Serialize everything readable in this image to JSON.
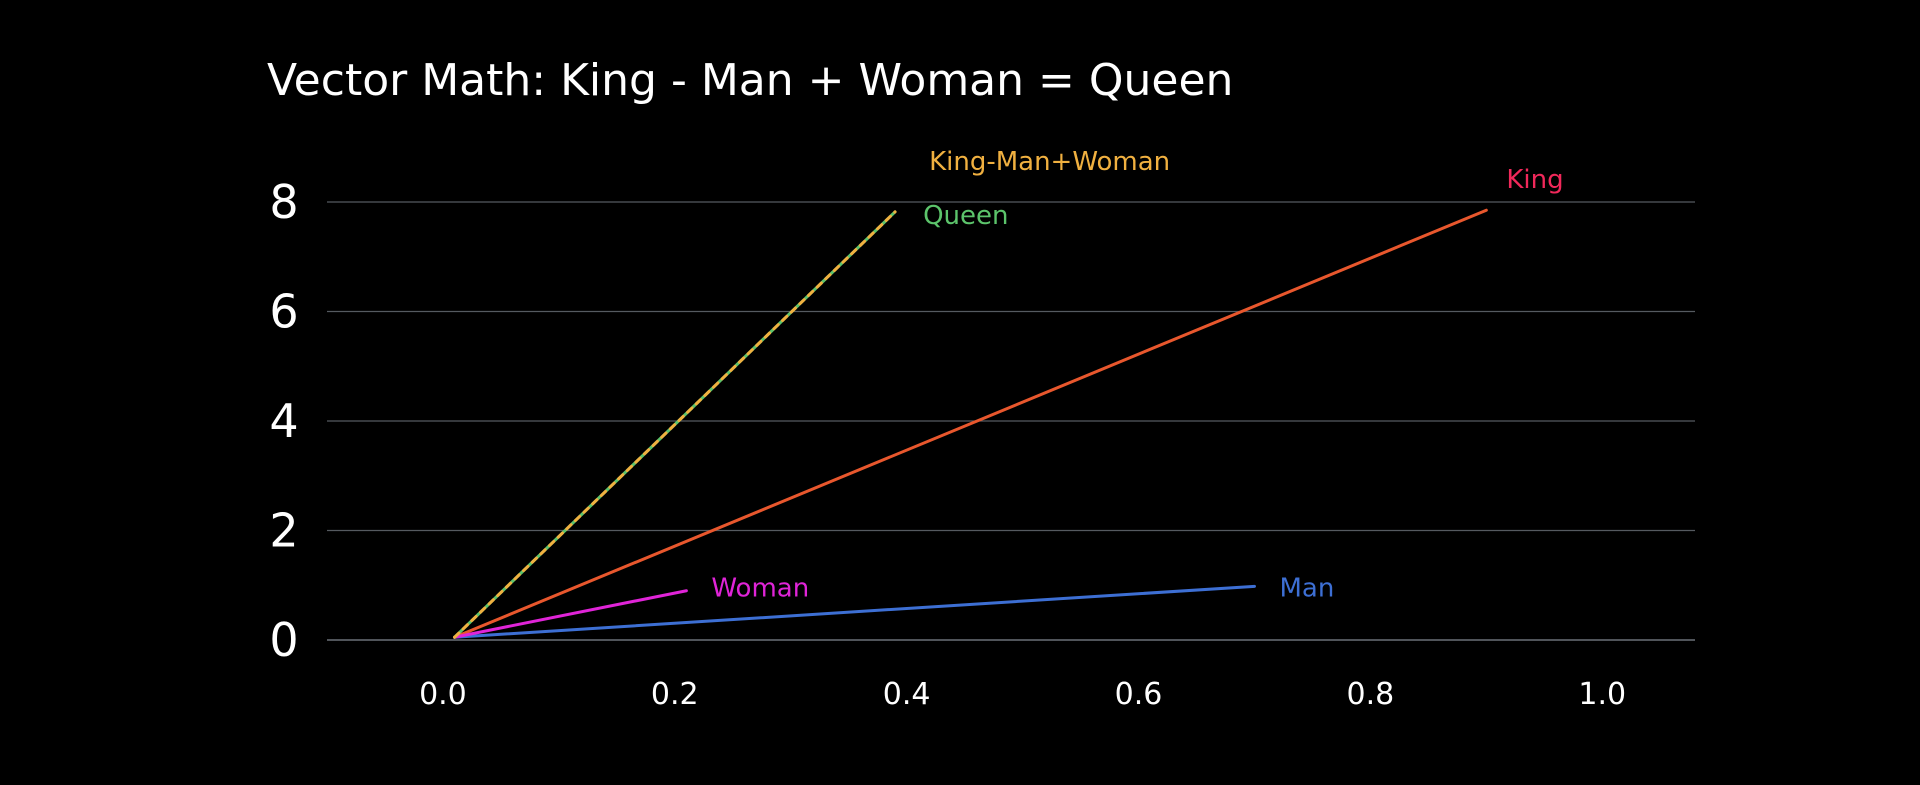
{
  "chart_data": {
    "type": "line",
    "title": "Vector Math: King - Man + Woman = Queen",
    "xlabel": "",
    "ylabel": "",
    "xlim": [
      -0.1,
      1.08
    ],
    "ylim": [
      0,
      8
    ],
    "grid": true,
    "x_ticks": [
      "0.0",
      "0.2",
      "0.4",
      "0.6",
      "0.8",
      "1.0"
    ],
    "y_ticks": [
      "0",
      "2",
      "4",
      "6",
      "8"
    ],
    "series": [
      {
        "name": "King",
        "color": "#e8572d",
        "label_color": "#f0285a",
        "dashed": false,
        "points": [
          [
            0.01,
            0.05
          ],
          [
            0.9,
            7.85
          ]
        ]
      },
      {
        "name": "Man",
        "color": "#3d6fd4",
        "label_color": "#3d6fd4",
        "dashed": false,
        "points": [
          [
            0.01,
            0.05
          ],
          [
            0.7,
            0.98
          ]
        ]
      },
      {
        "name": "Woman",
        "color": "#e024d8",
        "label_color": "#e024d8",
        "dashed": false,
        "points": [
          [
            0.01,
            0.05
          ],
          [
            0.21,
            0.9
          ]
        ]
      },
      {
        "name": "Queen",
        "color": "#5cc46b",
        "label_color": "#5cc46b",
        "dashed": false,
        "points": [
          [
            0.01,
            0.05
          ],
          [
            0.39,
            7.82
          ]
        ]
      },
      {
        "name": "King-Man+Woman",
        "color": "#f0b040",
        "label_color": "#f0b040",
        "dashed": true,
        "points": [
          [
            0.01,
            0.05
          ],
          [
            0.39,
            7.82
          ]
        ]
      }
    ]
  }
}
